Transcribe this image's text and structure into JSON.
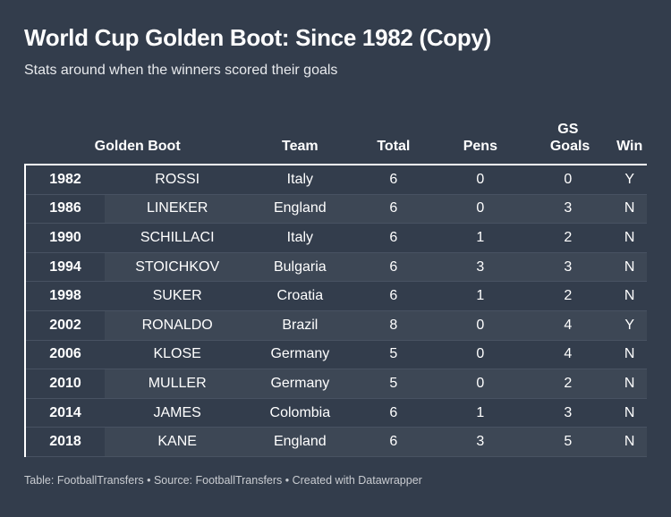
{
  "title": "World Cup Golden Boot: Since 1982 (Copy)",
  "subtitle": "Stats around when the winners scored their goals",
  "columns": [
    "Golden Boot",
    "Team",
    "Total",
    "Pens",
    "GS Goals",
    "Win"
  ],
  "rows": [
    {
      "year": "1982",
      "name": "ROSSI",
      "team": "Italy",
      "total": "6",
      "pens": "0",
      "gs": "0",
      "win": "Y"
    },
    {
      "year": "1986",
      "name": "LINEKER",
      "team": "England",
      "total": "6",
      "pens": "0",
      "gs": "3",
      "win": "N"
    },
    {
      "year": "1990",
      "name": "SCHILLACI",
      "team": "Italy",
      "total": "6",
      "pens": "1",
      "gs": "2",
      "win": "N"
    },
    {
      "year": "1994",
      "name": "STOICHKOV",
      "team": "Bulgaria",
      "total": "6",
      "pens": "3",
      "gs": "3",
      "win": "N"
    },
    {
      "year": "1998",
      "name": "SUKER",
      "team": "Croatia",
      "total": "6",
      "pens": "1",
      "gs": "2",
      "win": "N"
    },
    {
      "year": "2002",
      "name": "RONALDO",
      "team": "Brazil",
      "total": "8",
      "pens": "0",
      "gs": "4",
      "win": "Y"
    },
    {
      "year": "2006",
      "name": "KLOSE",
      "team": "Germany",
      "total": "5",
      "pens": "0",
      "gs": "4",
      "win": "N"
    },
    {
      "year": "2010",
      "name": "MULLER",
      "team": "Germany",
      "total": "5",
      "pens": "0",
      "gs": "2",
      "win": "N"
    },
    {
      "year": "2014",
      "name": "JAMES",
      "team": "Colombia",
      "total": "6",
      "pens": "1",
      "gs": "3",
      "win": "N"
    },
    {
      "year": "2018",
      "name": "KANE",
      "team": "England",
      "total": "6",
      "pens": "3",
      "gs": "5",
      "win": "N"
    }
  ],
  "footer": "Table: FootballTransfers • Source: FootballTransfers • Created with Datawrapper"
}
